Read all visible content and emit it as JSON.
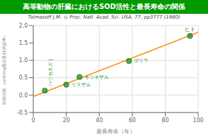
{
  "chart_data": {
    "type": "scatter",
    "title": "高等動物の肝臓におけるSOD活性と最長寿命の関係",
    "subtitle": "Tolmasoff J.M. ら  Proc. Natl. Acad. Sci. USA. 77, pp3777 (1980)",
    "xlabel": "最長寿命（年）",
    "ylabel": "SOD活性（unit/mg蛋白質/比代謝率）",
    "series": [
      {
        "type": "line",
        "x": [
          0,
          100
        ],
        "values": [
          -0.04,
          1.81
        ],
        "color": "#FF8800"
      },
      {
        "type": "scatter",
        "x": [
          7,
          20,
          28,
          58,
          95
        ],
        "values": [
          0.13,
          0.3,
          0.52,
          0.98,
          1.7
        ],
        "annotations": [
          "ハツカネズミ",
          "リスザル",
          "キツネザル",
          "ゴリラ",
          "ヒト"
        ],
        "color": "#228B22"
      }
    ],
    "xlim": [
      0,
      100
    ],
    "ylim": [
      -0.5,
      2.0
    ],
    "xticks": [
      0,
      20,
      40,
      60,
      80,
      100
    ],
    "yticks": [
      -0.5,
      {
        "value": 0,
        "label": "0.0"
      },
      0.5,
      {
        "value": 1,
        "label": "1.0"
      },
      1.5,
      {
        "value": 2,
        "label": "2.0"
      }
    ],
    "grid": true
  }
}
